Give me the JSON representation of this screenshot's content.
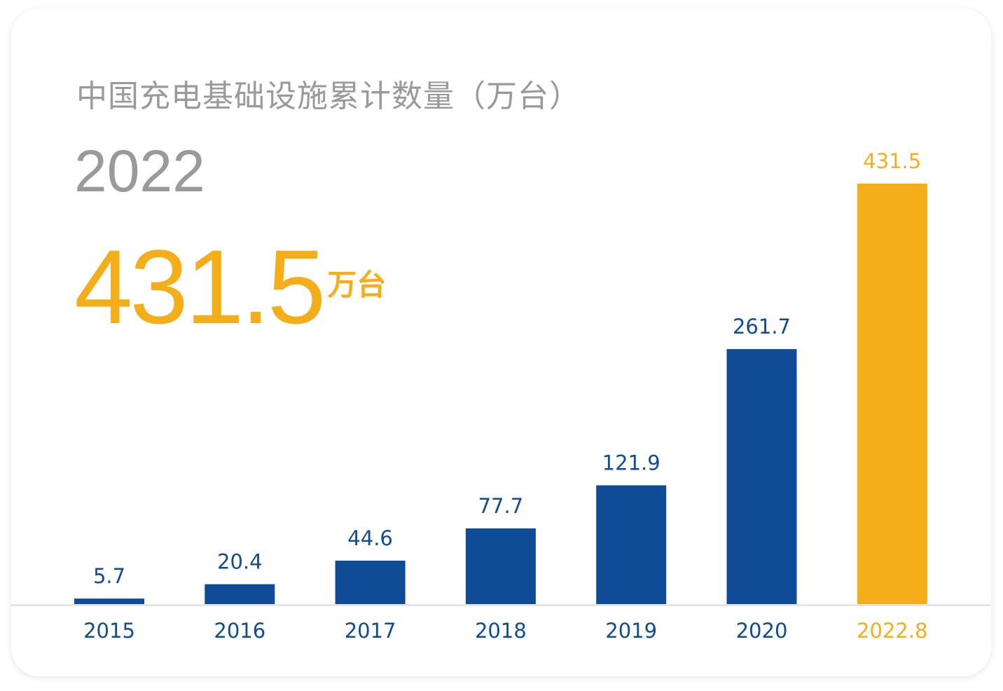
{
  "header": {
    "title": "中国充电基础设施累计数量（万台）",
    "year": "2022",
    "highlight_value": "431.5",
    "highlight_unit": "万台"
  },
  "colors": {
    "primary_bar": "#0f4c95",
    "highlight_bar": "#f3ae1a",
    "muted_text": "#9a9a9a",
    "baseline": "#e6e6e6"
  },
  "chart_data": {
    "type": "bar",
    "categories": [
      "2015",
      "2016",
      "2017",
      "2018",
      "2019",
      "2020",
      "2022.8"
    ],
    "values": [
      5.7,
      20.4,
      44.6,
      77.7,
      121.9,
      261.7,
      431.5
    ],
    "data_labels": [
      "5.7",
      "20.4",
      "44.6",
      "77.7",
      "121.9",
      "261.7",
      "431.5"
    ],
    "highlight_index": 6,
    "title": "中国充电基础设施累计数量（万台）",
    "xlabel": "",
    "ylabel": "",
    "ylim": [
      0,
      431.5
    ],
    "grid": false,
    "legend": "none"
  }
}
